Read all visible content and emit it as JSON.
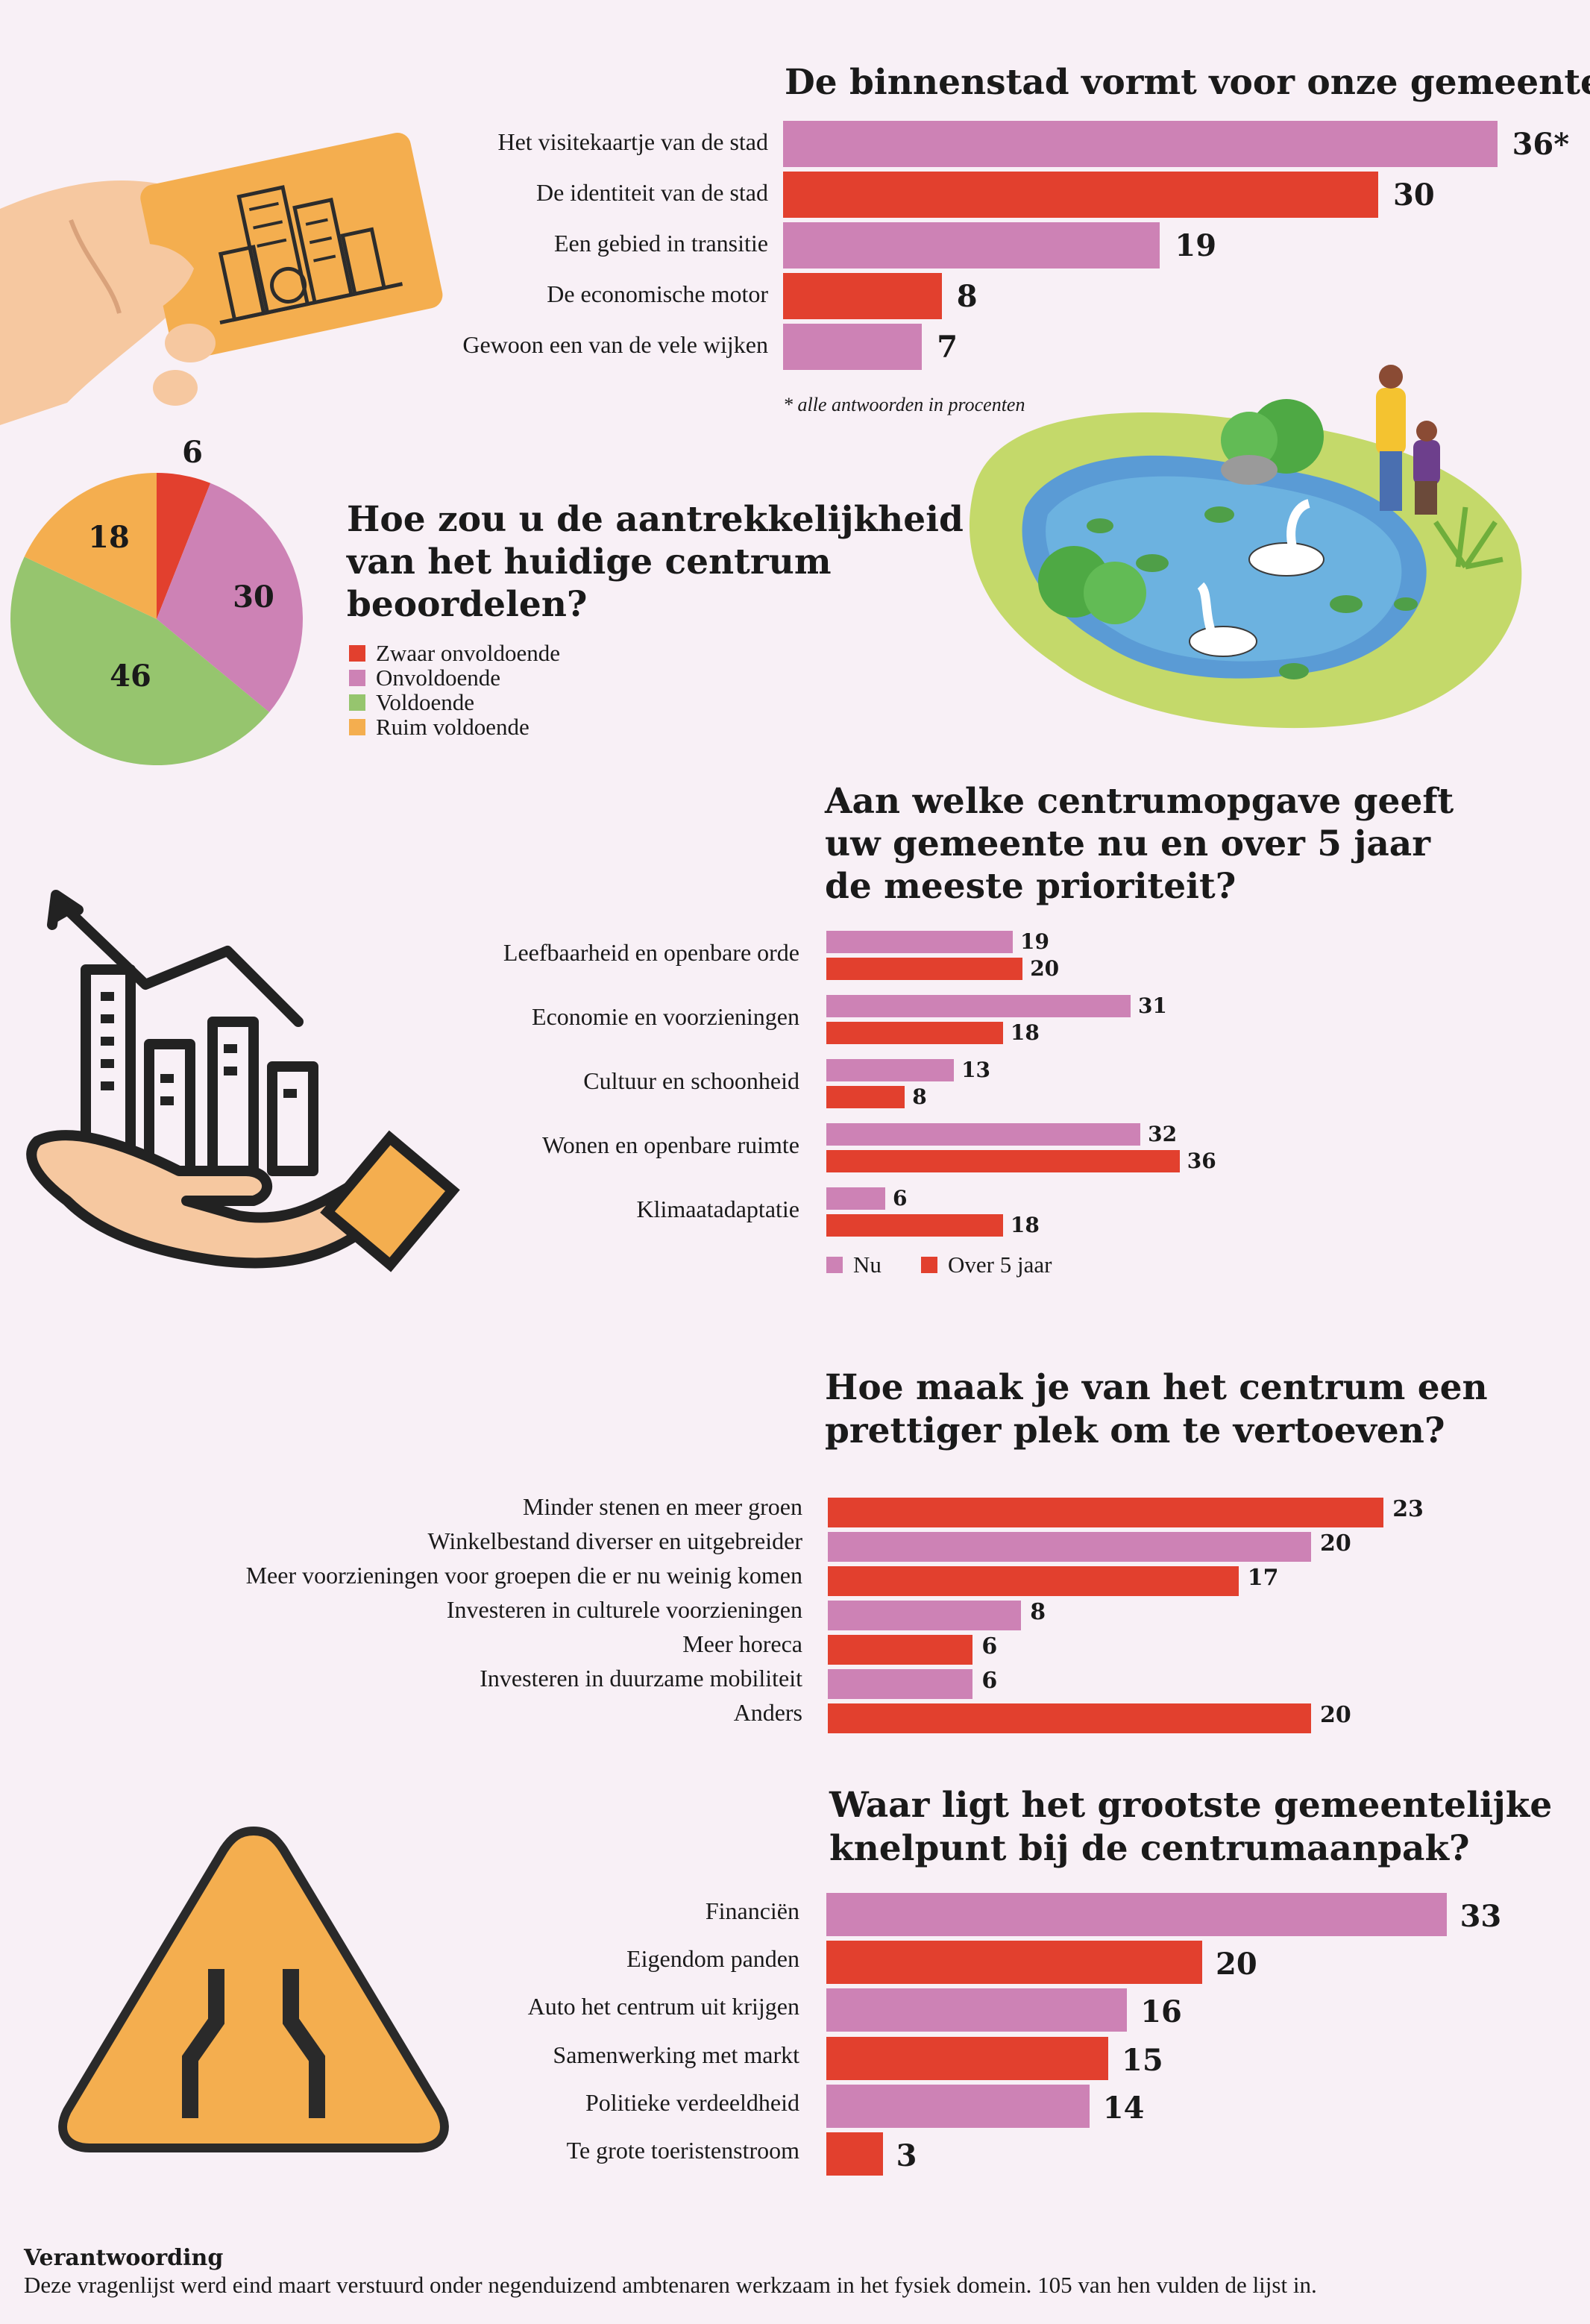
{
  "colors": {
    "pink": "#cd82b5",
    "red": "#e2402e",
    "green": "#96c56e",
    "orange": "#f4ae4f",
    "background": "#f8f0f6"
  },
  "chart_data": [
    {
      "type": "bar",
      "orientation": "horizontal",
      "title": "De binnenstad vormt voor onze gemeente ...",
      "categories": [
        "Het visitekaartje van de stad",
        "De identiteit van de stad",
        "Een gebied in transitie",
        "De economische motor",
        "Gewoon een van de vele wijken"
      ],
      "values": [
        36,
        30,
        19,
        8,
        7
      ],
      "value_labels": [
        "36*",
        "30",
        "19",
        "8",
        "7"
      ],
      "bar_colors": [
        "pink",
        "red",
        "pink",
        "red",
        "pink"
      ],
      "note": "* alle antwoorden in procenten"
    },
    {
      "type": "pie",
      "title": "Hoe zou u de aantrekkelijkheid van het huidige centrum beoordelen?",
      "slices": [
        {
          "label": "Zwaar onvoldoende",
          "value": 6,
          "color": "red"
        },
        {
          "label": "Onvoldoende",
          "value": 30,
          "color": "pink"
        },
        {
          "label": "Voldoende",
          "value": 46,
          "color": "green"
        },
        {
          "label": "Ruim voldoende",
          "value": 18,
          "color": "orange"
        }
      ],
      "legend_placement": "right"
    },
    {
      "type": "bar",
      "orientation": "horizontal",
      "title": "Aan welke centrumopgave geeft uw gemeente nu en over 5 jaar de meeste prioriteit?",
      "categories": [
        "Leefbaarheid en openbare orde",
        "Economie en voorzieningen",
        "Cultuur en schoonheid",
        "Wonen en openbare ruimte",
        "Klimaatadaptatie"
      ],
      "series": [
        {
          "name": "Nu",
          "values": [
            19,
            31,
            13,
            32,
            6
          ],
          "color": "pink"
        },
        {
          "name": "Over 5 jaar",
          "values": [
            20,
            18,
            8,
            36,
            18
          ],
          "color": "red"
        }
      ],
      "legend_placement": "bottom-left"
    },
    {
      "type": "bar",
      "orientation": "horizontal",
      "title": "Hoe maak je van het centrum een prettiger plek om te vertoeven?",
      "categories": [
        "Minder stenen en meer groen",
        "Winkelbestand diverser en uitgebreider",
        "Meer voorzieningen voor groepen die er nu weinig komen",
        "Investeren in culturele voorzieningen",
        "Meer horeca",
        "Investeren in duurzame mobiliteit",
        "Anders"
      ],
      "values": [
        23,
        20,
        17,
        8,
        6,
        6,
        20
      ],
      "bar_colors": [
        "red",
        "pink",
        "red",
        "pink",
        "red",
        "pink",
        "red"
      ]
    },
    {
      "type": "bar",
      "orientation": "horizontal",
      "title": "Waar ligt het grootste gemeentelijke knelpunt bij de centrumaanpak?",
      "categories": [
        "Financiën",
        "Eigendom panden",
        "Auto het centrum uit krijgen",
        "Samenwerking met markt",
        "Politieke verdeeldheid",
        "Te grote toeristenstroom"
      ],
      "values": [
        33,
        20,
        16,
        15,
        14,
        3
      ],
      "bar_colors": [
        "pink",
        "red",
        "pink",
        "red",
        "pink",
        "red"
      ]
    }
  ],
  "footer": {
    "heading": "Verantwoording",
    "text": "Deze vragenlijst werd eind maart verstuurd onder negenduizend ambtenaren werkzaam in het fysiek domein. 105 van hen vulden de lijst in."
  }
}
